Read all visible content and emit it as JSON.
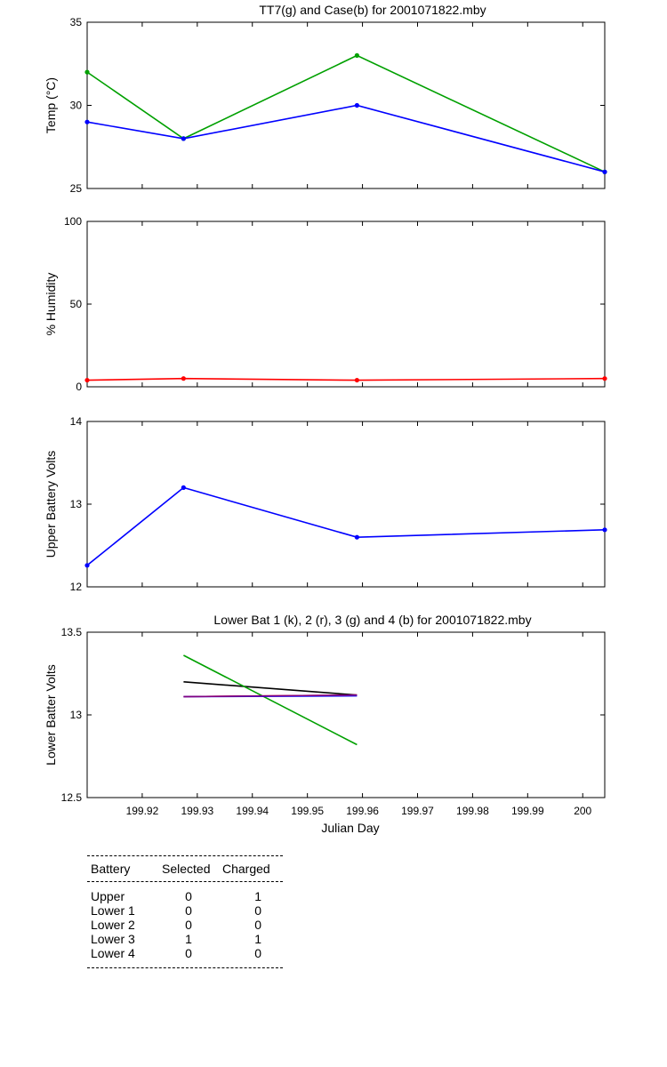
{
  "chart_data": [
    {
      "type": "line",
      "title": "TT7(g) and Case(b) for 2001071822.mby",
      "ylabel": "Temp  (°C)",
      "xlabel": "",
      "xlim": [
        199.91,
        200.004
      ],
      "ylim": [
        25,
        35
      ],
      "yticks": [
        25,
        30,
        35
      ],
      "xtick_labels_shown": false,
      "series": [
        {
          "color": "#00a000",
          "marker": true,
          "x": [
            199.91,
            199.9275,
            199.959,
            200.004
          ],
          "y": [
            32,
            28,
            33,
            26
          ]
        },
        {
          "color": "#0000ff",
          "marker": true,
          "x": [
            199.91,
            199.9275,
            199.959,
            200.004
          ],
          "y": [
            29,
            28,
            30,
            26
          ]
        }
      ]
    },
    {
      "type": "line",
      "title": "",
      "ylabel": "% Humidity",
      "xlabel": "",
      "xlim": [
        199.91,
        200.004
      ],
      "ylim": [
        0,
        100
      ],
      "yticks": [
        0,
        50,
        100
      ],
      "xtick_labels_shown": false,
      "series": [
        {
          "color": "#ff0000",
          "marker": true,
          "x": [
            199.91,
            199.9275,
            199.959,
            200.004
          ],
          "y": [
            4,
            5,
            4,
            5
          ]
        }
      ]
    },
    {
      "type": "line",
      "title": "",
      "ylabel": "Upper Battery Volts",
      "xlabel": "",
      "xlim": [
        199.91,
        200.004
      ],
      "ylim": [
        12,
        14
      ],
      "yticks": [
        12,
        13,
        14
      ],
      "xtick_labels_shown": false,
      "series": [
        {
          "color": "#0000ff",
          "marker": true,
          "x": [
            199.91,
            199.9275,
            199.959,
            200.004
          ],
          "y": [
            12.26,
            13.2,
            12.6,
            12.69
          ]
        }
      ]
    },
    {
      "type": "line",
      "title": "Lower Bat 1 (k), 2 (r), 3 (g) and 4 (b) for 2001071822.mby",
      "ylabel": "Lower Batter Volts",
      "xlabel": "Julian Day",
      "xlim": [
        199.91,
        200.004
      ],
      "ylim": [
        12.5,
        13.5
      ],
      "yticks": [
        "12.5",
        "13",
        "13.5"
      ],
      "xticks": [
        199.92,
        199.93,
        199.94,
        199.95,
        199.96,
        199.97,
        199.98,
        199.99,
        200
      ],
      "xtick_labels": [
        "199.92",
        "199.93",
        "199.94",
        "199.95",
        "199.96",
        "199.97",
        "199.98",
        "199.99",
        "200"
      ],
      "xtick_labels_shown": true,
      "series": [
        {
          "color": "#000000",
          "marker": false,
          "x": [
            199.9275,
            199.959
          ],
          "y": [
            13.2,
            13.12
          ]
        },
        {
          "color": "#ff0000",
          "marker": false,
          "x": [
            199.9275,
            199.959
          ],
          "y": [
            13.11,
            13.12
          ]
        },
        {
          "color": "#00a000",
          "marker": false,
          "x": [
            199.9275,
            199.959
          ],
          "y": [
            13.36,
            12.82
          ]
        },
        {
          "color": "#0000ff",
          "marker": false,
          "x": [
            199.9275,
            199.959
          ],
          "y": [
            13.11,
            13.115
          ]
        },
        {
          "color": "#800080",
          "marker": false,
          "x": [
            199.9275,
            199.959
          ],
          "y": [
            13.11,
            13.12
          ]
        }
      ]
    }
  ],
  "battery_table": {
    "headers": [
      "Battery",
      "Selected",
      "Charged"
    ],
    "rows": [
      [
        "Upper",
        "0",
        "1"
      ],
      [
        "Lower 1",
        "0",
        "0"
      ],
      [
        "Lower 2",
        "0",
        "0"
      ],
      [
        "Lower 3",
        "1",
        "1"
      ],
      [
        "Lower 4",
        "0",
        "0"
      ]
    ]
  }
}
